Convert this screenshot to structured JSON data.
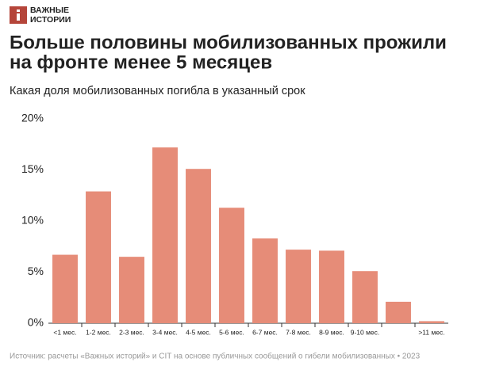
{
  "brand": [
    "ВАЖНЫЕ",
    "ИСТОРИИ"
  ],
  "chart_data": {
    "type": "bar",
    "title": [
      "Больше половины мобилизованных прожили",
      "на фронте менее 5 месяцев"
    ],
    "subtitle": "Какая доля мобилизованных погибла в указанный срок",
    "categories": [
      "<1 мес.",
      "1-2 мес.",
      "2-3 мес.",
      "3-4 мес.",
      "4-5 мес.",
      "5-6 мес.",
      "6-7 мес.",
      "7-8 мес.",
      "8-9 мес.",
      "9-10 мес.",
      null,
      ">11 мес."
    ],
    "values": [
      6.7,
      12.9,
      6.5,
      17.2,
      15.1,
      11.3,
      8.3,
      7.2,
      7.1,
      5.1,
      2.1,
      0.2
    ],
    "color": "#e68c78",
    "ylim": [
      0,
      20
    ],
    "yticks": [
      {
        "value": 0,
        "label": "0%"
      },
      {
        "value": 5,
        "label": "5%"
      },
      {
        "value": 10,
        "label": "10%"
      },
      {
        "value": 15,
        "label": "15%"
      },
      {
        "value": 20,
        "label": "20%"
      }
    ],
    "grid": false,
    "source": "Источник: расчеты «Важных историй» и CIT на основе публичных сообщений о гибели мобилизованных • 2023"
  }
}
